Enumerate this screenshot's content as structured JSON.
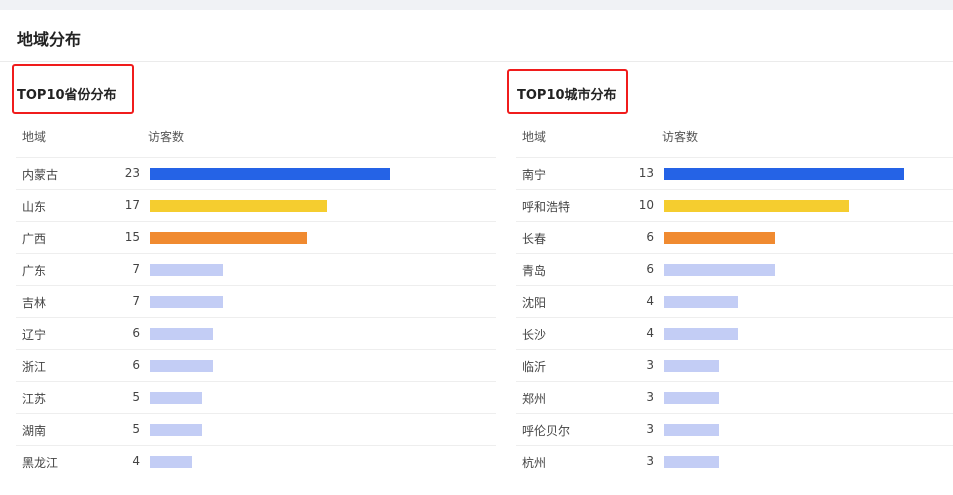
{
  "page_title": "地域分布",
  "colors": {
    "first": "#2563e6",
    "second": "#f5cd2f",
    "third": "#f08a30",
    "rest": "#c3cdf5",
    "highlight_box": "#f01c1c"
  },
  "provinces": {
    "title": "TOP10省份分布",
    "col_region": "地域",
    "col_visitors": "访客数",
    "rows": [
      {
        "name": "内蒙古",
        "value": 23
      },
      {
        "name": "山东",
        "value": 17
      },
      {
        "name": "广西",
        "value": 15
      },
      {
        "name": "广东",
        "value": 7
      },
      {
        "name": "吉林",
        "value": 7
      },
      {
        "name": "辽宁",
        "value": 6
      },
      {
        "name": "浙江",
        "value": 6
      },
      {
        "name": "江苏",
        "value": 5
      },
      {
        "name": "湖南",
        "value": 5
      },
      {
        "name": "黑龙江",
        "value": 4
      }
    ]
  },
  "cities": {
    "title": "TOP10城市分布",
    "col_region": "地域",
    "col_visitors": "访客数",
    "rows": [
      {
        "name": "南宁",
        "value": 13
      },
      {
        "name": "呼和浩特",
        "value": 10
      },
      {
        "name": "长春",
        "value": 6
      },
      {
        "name": "青岛",
        "value": 6
      },
      {
        "name": "沈阳",
        "value": 4
      },
      {
        "name": "长沙",
        "value": 4
      },
      {
        "name": "临沂",
        "value": 3
      },
      {
        "name": "郑州",
        "value": 3
      },
      {
        "name": "呼伦贝尔",
        "value": 3
      },
      {
        "name": "杭州",
        "value": 3
      }
    ]
  }
}
